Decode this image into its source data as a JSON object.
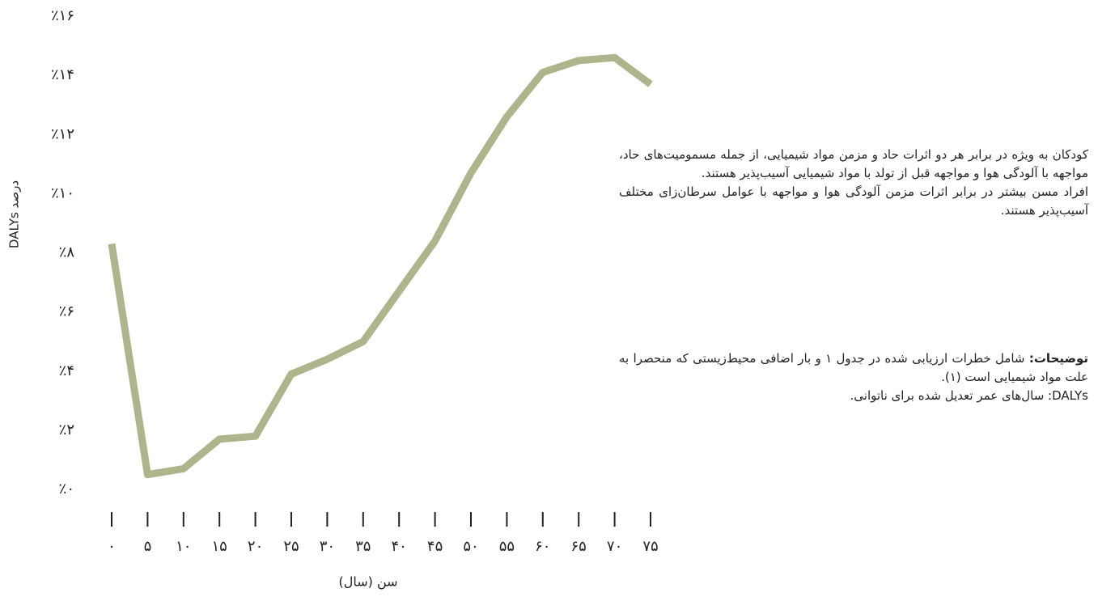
{
  "chart_data": {
    "type": "line",
    "y_label": "درصد DALYs",
    "x_label": "سن (سال)",
    "x": [
      0,
      5,
      10,
      15,
      20,
      25,
      30,
      35,
      40,
      45,
      50,
      55,
      60,
      65,
      70,
      75
    ],
    "series": [
      {
        "color": "#b0b48c",
        "values": [
          8.3,
          0.5,
          0.7,
          1.7,
          1.8,
          3.9,
          4.4,
          5.0,
          6.7,
          8.4,
          10.7,
          12.6,
          14.1,
          14.5,
          14.6,
          13.7
        ]
      }
    ],
    "xlim": [
      0,
      75
    ],
    "xticks": [
      {
        "value": 0,
        "label": "۰"
      },
      {
        "value": 5,
        "label": "۵"
      },
      {
        "value": 10,
        "label": "۱۰"
      },
      {
        "value": 15,
        "label": "۱۵"
      },
      {
        "value": 20,
        "label": "۲۰"
      },
      {
        "value": 25,
        "label": "۲۵"
      },
      {
        "value": 30,
        "label": "۳۰"
      },
      {
        "value": 35,
        "label": "۳۵"
      },
      {
        "value": 40,
        "label": "۴۰"
      },
      {
        "value": 45,
        "label": "۴۵"
      },
      {
        "value": 50,
        "label": "۵۰"
      },
      {
        "value": 55,
        "label": "۵۵"
      },
      {
        "value": 60,
        "label": "۶۰"
      },
      {
        "value": 65,
        "label": "۶۵"
      },
      {
        "value": 70,
        "label": "۷۰"
      },
      {
        "value": 75,
        "label": "۷۵"
      }
    ],
    "ylim": [
      0,
      16
    ],
    "yticks": [
      {
        "value": 0,
        "label": "٪۰"
      },
      {
        "value": 2,
        "label": "٪۲"
      },
      {
        "value": 4,
        "label": "٪۴"
      },
      {
        "value": 6,
        "label": "٪۶"
      },
      {
        "value": 8,
        "label": "٪۸"
      },
      {
        "value": 10,
        "label": "٪۱۰"
      },
      {
        "value": 12,
        "label": "٪۱۲"
      },
      {
        "value": 14,
        "label": "٪۱۴"
      },
      {
        "value": 16,
        "label": "٪۱۶"
      }
    ],
    "annotations": [
      "کودکان به ویژه در برابر هر دو اثرات حاد و مزمن مواد شیمیایی، از جمله مسمومیت‌های حاد، مواجهه با آلودگی هوا و مواجهه قبل از تولد با مواد شیمیایی آسیب‌پذیر هستند.",
      "افراد مسن بیشتر در برابر اثرات مزمن آلودگی هوا و مواجهه با عوامل سرطان‌زای مختلف آسیب‌پذیر هستند."
    ],
    "note_label": "توضیحات:",
    "note_text": "شامل خطرات ارزیابی شده در جدول ۱ و بار اضافی محیط‌زیستی که منحصرا به علت مواد شیمیایی است (۱).",
    "note_abbrev": "DALYs: سال‌های عمر تعدیل شده برای ناتوانی."
  }
}
